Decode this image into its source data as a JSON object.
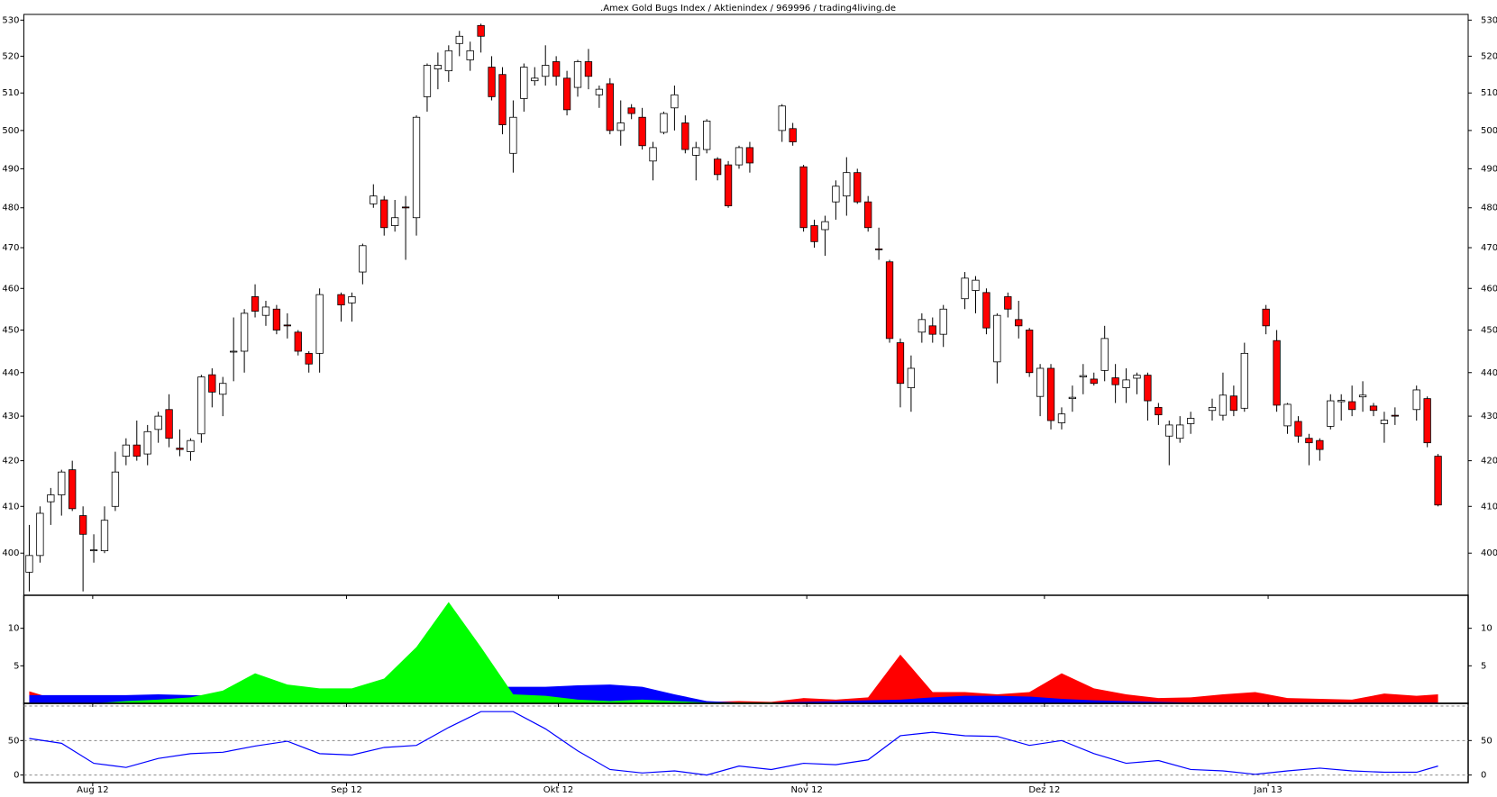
{
  "chart_data": [
    {
      "type": "candlestick",
      "title": ".Amex Gold Bugs Index / Aktienindex / 969996 / trading4living.de",
      "x": [
        0,
        1,
        2,
        3,
        4,
        5,
        6,
        7,
        8,
        9,
        10,
        11,
        12,
        13,
        14,
        15,
        16,
        17,
        18,
        19,
        20,
        21,
        22,
        23,
        24,
        25,
        26,
        27,
        29,
        30,
        31,
        32,
        33,
        34,
        35,
        36,
        37,
        38,
        39,
        40,
        41,
        42,
        43,
        44,
        45,
        46,
        47,
        48,
        49,
        50,
        51,
        52,
        53,
        54,
        55,
        56,
        57,
        58,
        59,
        60,
        61,
        62,
        63,
        64,
        65,
        66,
        67,
        70,
        71,
        72,
        73,
        74,
        75,
        76,
        77,
        78,
        79,
        80,
        81,
        82,
        83,
        84,
        85,
        87,
        88,
        89,
        90,
        91,
        92,
        93,
        94,
        95,
        96,
        97,
        98,
        99,
        100,
        101,
        102,
        103,
        104,
        105,
        106,
        107,
        108,
        110,
        111,
        112,
        113,
        115,
        116,
        117,
        118,
        119,
        120,
        121,
        122,
        123,
        124,
        125,
        126,
        127,
        129,
        130,
        131
      ],
      "open": [
        396,
        399.5,
        411,
        412.5,
        418,
        408,
        400.5,
        400.5,
        410,
        421,
        423.5,
        421.5,
        427,
        431.5,
        422.8,
        422,
        426,
        439.5,
        435,
        444.8,
        445,
        458,
        453.5,
        455,
        451.2,
        449.5,
        444.5,
        444.5,
        458.5,
        456.5,
        464,
        481,
        482,
        475.5,
        480.2,
        477.5,
        509,
        516.5,
        516,
        523.5,
        519,
        528.5,
        517,
        515,
        494,
        508.5,
        513.3,
        514.5,
        518.5,
        514,
        511.5,
        518.5,
        509.5,
        512.5,
        500,
        506,
        503.5,
        492,
        499.5,
        506,
        502,
        493.5,
        495,
        492.5,
        491,
        491,
        495.5,
        500,
        500.5,
        490.5,
        475.5,
        474.5,
        481.5,
        483,
        489,
        481.5,
        469.7,
        466.5,
        447,
        436.5,
        449.5,
        451,
        449,
        457.5,
        459.5,
        459,
        442.5,
        458,
        452.5,
        450,
        434.5,
        441,
        428.5,
        434,
        439,
        438.5,
        440.5,
        438.8,
        436.5,
        438.7,
        439.4,
        432,
        425.5,
        425,
        428.3,
        431.3,
        430.2,
        434.6,
        431.8,
        455,
        447.5,
        427.8,
        428.8,
        425,
        424.5,
        427.7,
        433.3,
        433.3,
        434.4,
        432.3,
        428.3,
        430.2,
        431.5,
        434,
        421
      ],
      "high": [
        406,
        410,
        414,
        418,
        420,
        410,
        404,
        410,
        422,
        425,
        429,
        428,
        431,
        435,
        427,
        425,
        439.5,
        441,
        439,
        453,
        455,
        461,
        457,
        456,
        454,
        450,
        445,
        460,
        459,
        459,
        471,
        486,
        483,
        482,
        483,
        504,
        518,
        521,
        523,
        527,
        524,
        529,
        520,
        517,
        508,
        518,
        517,
        523,
        520,
        516,
        519,
        522,
        512,
        514,
        508,
        507,
        506,
        497,
        505,
        512,
        504,
        497,
        503,
        493,
        492,
        496,
        497,
        507,
        502,
        491,
        477,
        478,
        487,
        493,
        490,
        483,
        475,
        467,
        448,
        444,
        454,
        453,
        456,
        464,
        463,
        460,
        454,
        459,
        457,
        450.5,
        442,
        442,
        432,
        437,
        442,
        440,
        451,
        442,
        441,
        440,
        440,
        433,
        429,
        430,
        431,
        434,
        440,
        437,
        447,
        456,
        450,
        433,
        430,
        426,
        425,
        435,
        435,
        437,
        438,
        433,
        431,
        432,
        437,
        434.5,
        421.5
      ],
      "low": [
        392,
        398,
        406,
        408,
        409,
        392,
        398,
        400,
        409,
        419,
        420,
        419,
        424,
        423,
        421,
        420,
        424,
        432,
        430,
        438,
        440,
        453,
        451,
        449,
        448,
        444,
        440,
        440,
        452,
        452,
        461,
        480,
        473,
        474,
        467,
        473,
        505,
        511,
        513,
        520,
        516,
        521,
        508,
        499,
        489,
        505,
        512,
        512,
        512,
        504,
        509,
        511,
        506,
        499,
        496,
        503,
        495,
        487,
        499,
        500,
        494,
        487,
        494,
        487,
        480,
        490,
        489,
        497,
        496,
        474,
        470,
        468,
        477,
        478,
        481,
        474,
        467,
        447,
        432,
        431,
        447,
        447,
        446,
        455,
        454,
        449,
        437.5,
        453,
        448,
        439,
        430,
        427,
        427,
        431,
        435,
        437,
        438,
        433,
        433,
        435,
        429,
        428,
        419,
        424,
        426,
        429,
        429,
        430,
        431,
        449,
        431,
        426,
        424,
        419,
        420,
        427,
        429,
        430,
        431,
        430,
        424,
        428,
        429,
        423,
        410
      ],
      "close": [
        399.5,
        408.5,
        412.5,
        417.5,
        409.5,
        404,
        400.7,
        407,
        417.5,
        423.5,
        421,
        426.5,
        430,
        425,
        422.5,
        424.5,
        439,
        435.5,
        437.5,
        445,
        454,
        454.5,
        455.5,
        450,
        451,
        445,
        442,
        458.5,
        456,
        458,
        470.5,
        483,
        475,
        477.5,
        480,
        503.5,
        517.5,
        517.5,
        521.5,
        525.5,
        521.5,
        525.5,
        509,
        501.5,
        503.5,
        517,
        514,
        517.5,
        514.5,
        505.5,
        518.5,
        514.5,
        511,
        500,
        502,
        504.5,
        496,
        495.5,
        504.5,
        509.5,
        495,
        495.5,
        502.5,
        488.5,
        480.5,
        495.5,
        491.5,
        506.5,
        497,
        475,
        471.5,
        476.5,
        485.5,
        489,
        481.5,
        475,
        469.5,
        448,
        437.5,
        441,
        452.5,
        449,
        455,
        462.5,
        462,
        450.5,
        453.5,
        455,
        451,
        440,
        441,
        429,
        430.5,
        434.3,
        439.3,
        437.5,
        448,
        437.2,
        438.3,
        439.4,
        433.5,
        430.3,
        428,
        428,
        429.5,
        432,
        434.8,
        431.3,
        444.5,
        451,
        432.5,
        432.7,
        425.5,
        424,
        422.5,
        433.5,
        433.6,
        431.5,
        434.8,
        431.3,
        429.1,
        430,
        436,
        424,
        410.3
      ],
      "up_color": "#ffffff",
      "down_color": "#ff0000",
      "xlim": [
        -0.5,
        133.8
      ],
      "xticks": [
        {
          "value": 5.9,
          "label": "Aug 12"
        },
        {
          "value": 29.5,
          "label": "Sep 12"
        },
        {
          "value": 49.2,
          "label": "Okt 12"
        },
        {
          "value": 72.3,
          "label": "Nov 12"
        },
        {
          "value": 94.4,
          "label": "Dez 12"
        },
        {
          "value": 115.2,
          "label": "Jan 13"
        }
      ],
      "ylim": [
        391.2,
        531.6
      ],
      "log": true,
      "yticks": [
        400,
        410,
        420,
        430,
        440,
        450,
        460,
        470,
        480,
        490,
        500,
        510,
        520,
        530
      ]
    },
    {
      "type": "area",
      "x": [
        0,
        3,
        6,
        9,
        12,
        15,
        18,
        21,
        24,
        27,
        30,
        33,
        36,
        39,
        42,
        45,
        48,
        51,
        54,
        57,
        60,
        63,
        66,
        69,
        72,
        75,
        78,
        81,
        84,
        87,
        90,
        93,
        96,
        99,
        102,
        105,
        108,
        111,
        114,
        117,
        120,
        123,
        126,
        129,
        131
      ],
      "xlim": [
        -0.5,
        133.8
      ],
      "ylim": [
        0,
        14.4
      ],
      "yticks": [
        5,
        10
      ],
      "series": [
        {
          "color": "#ff0000",
          "values": [
            1.6,
            0.3,
            0.3,
            0.2,
            0.2,
            0.2,
            0.2,
            0.2,
            0.2,
            0.2,
            0.2,
            0.2,
            0.2,
            0.2,
            0.2,
            0.2,
            0.2,
            0.2,
            0.2,
            0.2,
            0.2,
            0.2,
            0.3,
            0.2,
            0.7,
            0.5,
            0.8,
            6.5,
            1.5,
            1.5,
            1.2,
            1.5,
            4,
            2,
            1.2,
            0.7,
            0.8,
            1.2,
            1.5,
            0.7,
            0.6,
            0.5,
            1.3,
            1,
            1.2
          ]
        },
        {
          "color": "#0000ff",
          "values": [
            1.1,
            1.1,
            1.1,
            1.1,
            1.2,
            1.1,
            1,
            1,
            1,
            1,
            1,
            1,
            1,
            1,
            2.2,
            2.2,
            2.2,
            2.4,
            2.5,
            2.2,
            1.2,
            0.3,
            0.1,
            0.1,
            0.2,
            0.3,
            0.4,
            0.5,
            0.8,
            1,
            1,
            0.9,
            0.6,
            0.4,
            0.3,
            0.2,
            0.1,
            0.1,
            0.1,
            0.1,
            0.1,
            0.1,
            0.1,
            0.1,
            0.1
          ]
        },
        {
          "color": "#00ff00",
          "values": [
            0,
            0,
            0,
            0.3,
            0.5,
            0.8,
            1.7,
            4,
            2.5,
            2,
            2,
            3.3,
            7.5,
            13.5,
            7.5,
            1.2,
            1,
            0.5,
            0.3,
            0.5,
            0.3,
            0.1,
            0.1,
            0.1,
            0,
            0,
            0,
            0,
            0,
            0,
            0,
            0,
            0,
            0,
            0,
            0,
            0,
            0,
            0,
            0,
            0,
            0,
            0,
            0,
            0
          ]
        }
      ]
    },
    {
      "type": "line",
      "x": [
        0,
        3,
        6,
        9,
        12,
        15,
        18,
        21,
        24,
        27,
        30,
        33,
        36,
        39,
        42,
        45,
        48,
        51,
        54,
        57,
        60,
        63,
        66,
        69,
        72,
        75,
        78,
        81,
        84,
        87,
        90,
        93,
        96,
        99,
        102,
        105,
        108,
        111,
        114,
        117,
        120,
        123,
        126,
        129,
        131
      ],
      "xlim": [
        -0.5,
        133.8
      ],
      "ylim": [
        -11,
        104
      ],
      "yticks": [
        0,
        50
      ],
      "hlines": [
        0,
        50,
        100
      ],
      "series": [
        {
          "color": "#0000ff",
          "values": [
            53,
            46,
            17,
            11,
            24,
            31,
            33,
            42,
            49,
            31,
            29,
            40,
            43,
            69,
            92,
            92,
            67,
            35,
            8,
            3,
            6,
            0,
            13,
            8,
            17,
            15,
            22,
            57,
            62,
            57,
            56,
            43,
            50,
            31,
            17,
            21,
            8,
            6,
            1,
            6,
            10,
            6,
            4,
            4,
            13
          ]
        }
      ]
    }
  ]
}
